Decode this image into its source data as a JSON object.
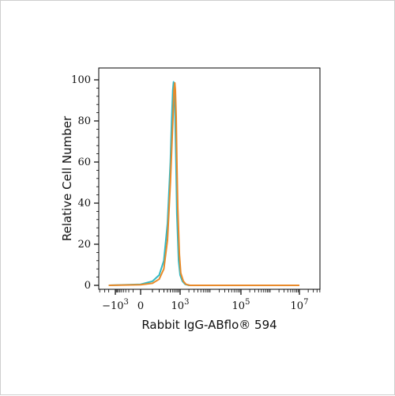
{
  "chart_data": {
    "type": "line",
    "xlabel": "Rabbit IgG-ABflo® 594",
    "ylabel": "Relative Cell Number",
    "ylim": [
      0,
      100
    ],
    "yticks": [
      "0",
      "20",
      "40",
      "60",
      "80",
      "100"
    ],
    "xticks": [
      {
        "base": "−10",
        "exp": "3",
        "value": -1000
      },
      {
        "base": "0",
        "exp": "",
        "value": 0
      },
      {
        "base": "10",
        "exp": "3",
        "value": 1000
      },
      {
        "base": "10",
        "exp": "5",
        "value": 100000
      },
      {
        "base": "10",
        "exp": "7",
        "value": 10000000
      }
    ],
    "x_scale": "biexponential",
    "grid": false,
    "legend": "none",
    "series": [
      {
        "color": "#2fb8c4",
        "points": [
          [
            -2000,
            0
          ],
          [
            0,
            0.5
          ],
          [
            100,
            2
          ],
          [
            200,
            5
          ],
          [
            300,
            12
          ],
          [
            400,
            30
          ],
          [
            500,
            60
          ],
          [
            550,
            80
          ],
          [
            600,
            95
          ],
          [
            630,
            99
          ],
          [
            660,
            96
          ],
          [
            700,
            85
          ],
          [
            750,
            60
          ],
          [
            800,
            35
          ],
          [
            900,
            12
          ],
          [
            1000,
            5
          ],
          [
            1200,
            2
          ],
          [
            1500,
            0.5
          ],
          [
            2000,
            0
          ],
          [
            10000000,
            0
          ]
        ]
      },
      {
        "color": "#e98a2a",
        "points": [
          [
            -2000,
            0
          ],
          [
            0,
            0.3
          ],
          [
            100,
            1
          ],
          [
            200,
            3
          ],
          [
            300,
            8
          ],
          [
            400,
            22
          ],
          [
            500,
            50
          ],
          [
            600,
            80
          ],
          [
            650,
            95
          ],
          [
            690,
            98.5
          ],
          [
            720,
            95
          ],
          [
            760,
            82
          ],
          [
            800,
            60
          ],
          [
            850,
            38
          ],
          [
            950,
            15
          ],
          [
            1050,
            6
          ],
          [
            1300,
            2
          ],
          [
            1600,
            0.5
          ],
          [
            2200,
            0
          ],
          [
            10000000,
            0
          ]
        ]
      }
    ]
  }
}
